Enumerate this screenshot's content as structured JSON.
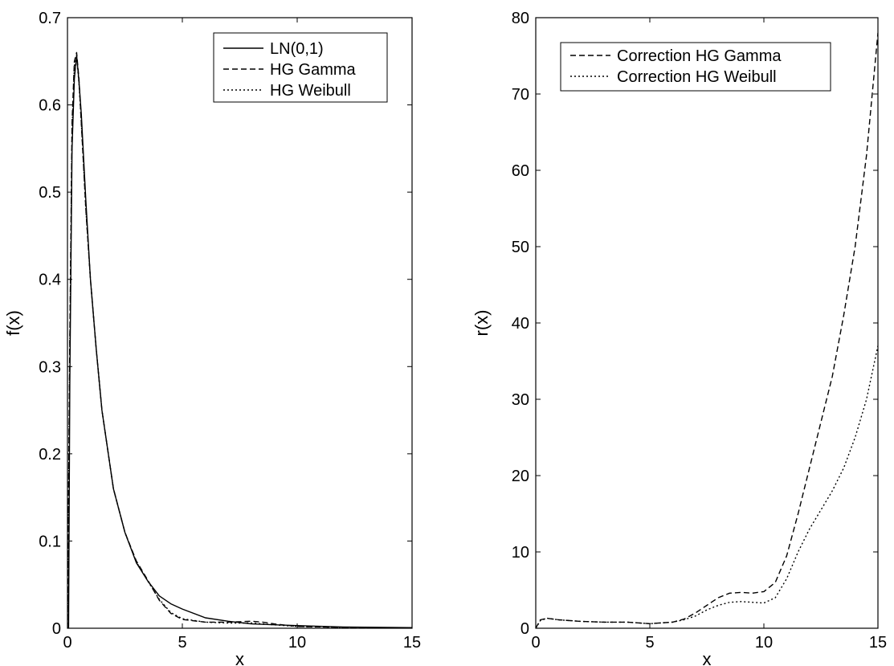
{
  "chart_data": [
    {
      "type": "line",
      "title": "",
      "xlabel": "x",
      "ylabel": "f(x)",
      "xlim": [
        0,
        15
      ],
      "ylim": [
        0,
        0.7
      ],
      "xticks": [
        "0",
        "5",
        "10",
        "15"
      ],
      "yticks": [
        "0",
        "0.1",
        "0.2",
        "0.3",
        "0.4",
        "0.5",
        "0.6",
        "0.7"
      ],
      "grid": false,
      "legend_position": "top-right",
      "series": [
        {
          "name": "LN(0,1)",
          "style": "solid",
          "x": [
            0,
            0.05,
            0.1,
            0.2,
            0.3,
            0.4,
            0.5,
            0.6,
            0.8,
            1.0,
            1.25,
            1.5,
            2.0,
            2.5,
            3.0,
            3.5,
            4.0,
            4.5,
            5.0,
            6.0,
            7.0,
            8.0,
            9.0,
            10.0,
            12.0,
            15.0
          ],
          "y": [
            0,
            0.0,
            0.28,
            0.55,
            0.63,
            0.657,
            0.627,
            0.59,
            0.49,
            0.4,
            0.32,
            0.25,
            0.16,
            0.11,
            0.075,
            0.054,
            0.037,
            0.028,
            0.022,
            0.012,
            0.008,
            0.005,
            0.004,
            0.003,
            0.0015,
            0.0007
          ]
        },
        {
          "name": "HG Gamma",
          "style": "dashed",
          "x": [
            0,
            0.1,
            0.2,
            0.3,
            0.4,
            0.5,
            0.6,
            0.8,
            1.0,
            1.25,
            1.5,
            2.0,
            2.5,
            3.0,
            3.5,
            4.0,
            4.5,
            5.0,
            6.0,
            7.0,
            8.0,
            8.5,
            9.0,
            10.0,
            12.0,
            15.0
          ],
          "y": [
            0,
            0.33,
            0.58,
            0.65,
            0.66,
            0.63,
            0.58,
            0.48,
            0.4,
            0.32,
            0.25,
            0.16,
            0.11,
            0.077,
            0.055,
            0.032,
            0.017,
            0.01,
            0.007,
            0.007,
            0.008,
            0.007,
            0.005,
            0.002,
            0.001,
            0.0005
          ]
        },
        {
          "name": "HG Weibull",
          "style": "dotted",
          "x": [
            0,
            0.1,
            0.2,
            0.3,
            0.4,
            0.5,
            0.6,
            0.8,
            1.0,
            1.25,
            1.5,
            2.0,
            2.5,
            3.0,
            3.5,
            4.0,
            4.5,
            5.0,
            6.0,
            7.0,
            8.0,
            9.0,
            10.0,
            12.0,
            15.0
          ],
          "y": [
            0,
            0.32,
            0.57,
            0.645,
            0.655,
            0.625,
            0.58,
            0.48,
            0.4,
            0.32,
            0.25,
            0.16,
            0.11,
            0.076,
            0.054,
            0.033,
            0.018,
            0.011,
            0.007,
            0.006,
            0.006,
            0.004,
            0.002,
            0.001,
            0.0005
          ]
        }
      ]
    },
    {
      "type": "line",
      "title": "",
      "xlabel": "x",
      "ylabel": "r(x)",
      "xlim": [
        0,
        15
      ],
      "ylim": [
        0,
        80
      ],
      "xticks": [
        "0",
        "5",
        "10",
        "15"
      ],
      "yticks": [
        "0",
        "10",
        "20",
        "30",
        "40",
        "50",
        "60",
        "70",
        "80"
      ],
      "grid": false,
      "legend_position": "top-left",
      "series": [
        {
          "name": "Correction HG Gamma",
          "style": "dashed",
          "x": [
            0,
            0.2,
            0.5,
            1.0,
            2.0,
            3.0,
            4.0,
            5.0,
            6.0,
            6.5,
            7.0,
            7.5,
            8.0,
            8.5,
            9.0,
            9.5,
            10.0,
            10.5,
            11.0,
            11.5,
            12.0,
            12.5,
            13.0,
            13.5,
            14.0,
            14.5,
            15.0
          ],
          "y": [
            0,
            1.1,
            1.3,
            1.1,
            0.9,
            0.8,
            0.8,
            0.6,
            0.8,
            1.2,
            2.0,
            3.0,
            4.0,
            4.6,
            4.7,
            4.6,
            4.8,
            6.0,
            9.5,
            15.0,
            21.0,
            27.0,
            33.0,
            41.0,
            50.0,
            62.0,
            78.0
          ]
        },
        {
          "name": "Correction HG Weibull",
          "style": "dotted",
          "x": [
            0,
            0.2,
            0.5,
            1.0,
            2.0,
            3.0,
            4.0,
            5.0,
            6.0,
            6.5,
            7.0,
            7.5,
            8.0,
            8.5,
            9.0,
            9.5,
            10.0,
            10.5,
            11.0,
            11.5,
            12.0,
            12.5,
            13.0,
            13.5,
            14.0,
            14.5,
            15.0
          ],
          "y": [
            0,
            1.0,
            1.3,
            1.1,
            0.9,
            0.8,
            0.8,
            0.6,
            0.8,
            1.1,
            1.6,
            2.4,
            3.0,
            3.4,
            3.5,
            3.4,
            3.3,
            4.0,
            6.5,
            10.0,
            13.0,
            15.5,
            18.0,
            21.0,
            25.0,
            30.0,
            37.0
          ]
        }
      ]
    }
  ]
}
